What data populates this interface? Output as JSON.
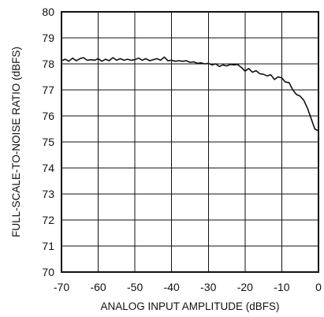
{
  "chart_data": {
    "type": "line",
    "title": "",
    "xlabel": "ANALOG INPUT AMPLITUDE (dBFS)",
    "ylabel": "FULL-SCALE-TO-NOISE RATIO (dBFS)",
    "xlim": [
      -70,
      0
    ],
    "ylim": [
      70,
      80
    ],
    "xticks": [
      -70,
      -60,
      -50,
      -40,
      -30,
      -20,
      -10,
      0
    ],
    "xtick_labels": [
      "-70",
      "-60",
      "-50",
      "-40",
      "-30",
      "-20",
      "-10",
      "0"
    ],
    "yticks": [
      70,
      71,
      72,
      73,
      74,
      75,
      76,
      77,
      78,
      79,
      80
    ],
    "ytick_labels": [
      "70",
      "71",
      "72",
      "73",
      "74",
      "75",
      "76",
      "77",
      "78",
      "79",
      "80"
    ],
    "grid": true,
    "legend": "none",
    "series": [
      {
        "color": "#111111",
        "x": [
          -70,
          -69,
          -68,
          -67,
          -66,
          -65,
          -64,
          -63,
          -62,
          -61,
          -60,
          -59,
          -58,
          -57,
          -56,
          -55,
          -54,
          -53,
          -52,
          -51,
          -50,
          -49,
          -48,
          -47,
          -46,
          -45,
          -44,
          -43,
          -42,
          -41,
          -40,
          -39,
          -38,
          -37,
          -36,
          -35,
          -34,
          -33,
          -32,
          -31,
          -30,
          -29,
          -28,
          -27,
          -26,
          -25,
          -24,
          -23,
          -22,
          -21,
          -20,
          -19,
          -18,
          -17,
          -16,
          -15,
          -14,
          -13,
          -12,
          -11,
          -10,
          -9,
          -8,
          -7,
          -6,
          -5,
          -4,
          -3,
          -2,
          -1,
          0
        ],
        "y": [
          78.12,
          78.18,
          78.1,
          78.22,
          78.12,
          78.2,
          78.24,
          78.14,
          78.16,
          78.14,
          78.2,
          78.1,
          78.18,
          78.12,
          78.24,
          78.14,
          78.2,
          78.14,
          78.18,
          78.14,
          78.16,
          78.22,
          78.14,
          78.2,
          78.12,
          78.16,
          78.2,
          78.14,
          78.26,
          78.12,
          78.14,
          78.1,
          78.12,
          78.1,
          78.12,
          78.06,
          78.08,
          78.02,
          78.04,
          78.0,
          78.02,
          77.96,
          78.0,
          77.9,
          77.96,
          77.92,
          77.98,
          77.96,
          77.98,
          77.86,
          77.72,
          77.82,
          77.68,
          77.74,
          77.62,
          77.6,
          77.54,
          77.58,
          77.4,
          77.5,
          77.46,
          77.3,
          77.28,
          77.0,
          76.82,
          76.76,
          76.6,
          76.3,
          75.9,
          75.5,
          75.42
        ]
      }
    ]
  }
}
